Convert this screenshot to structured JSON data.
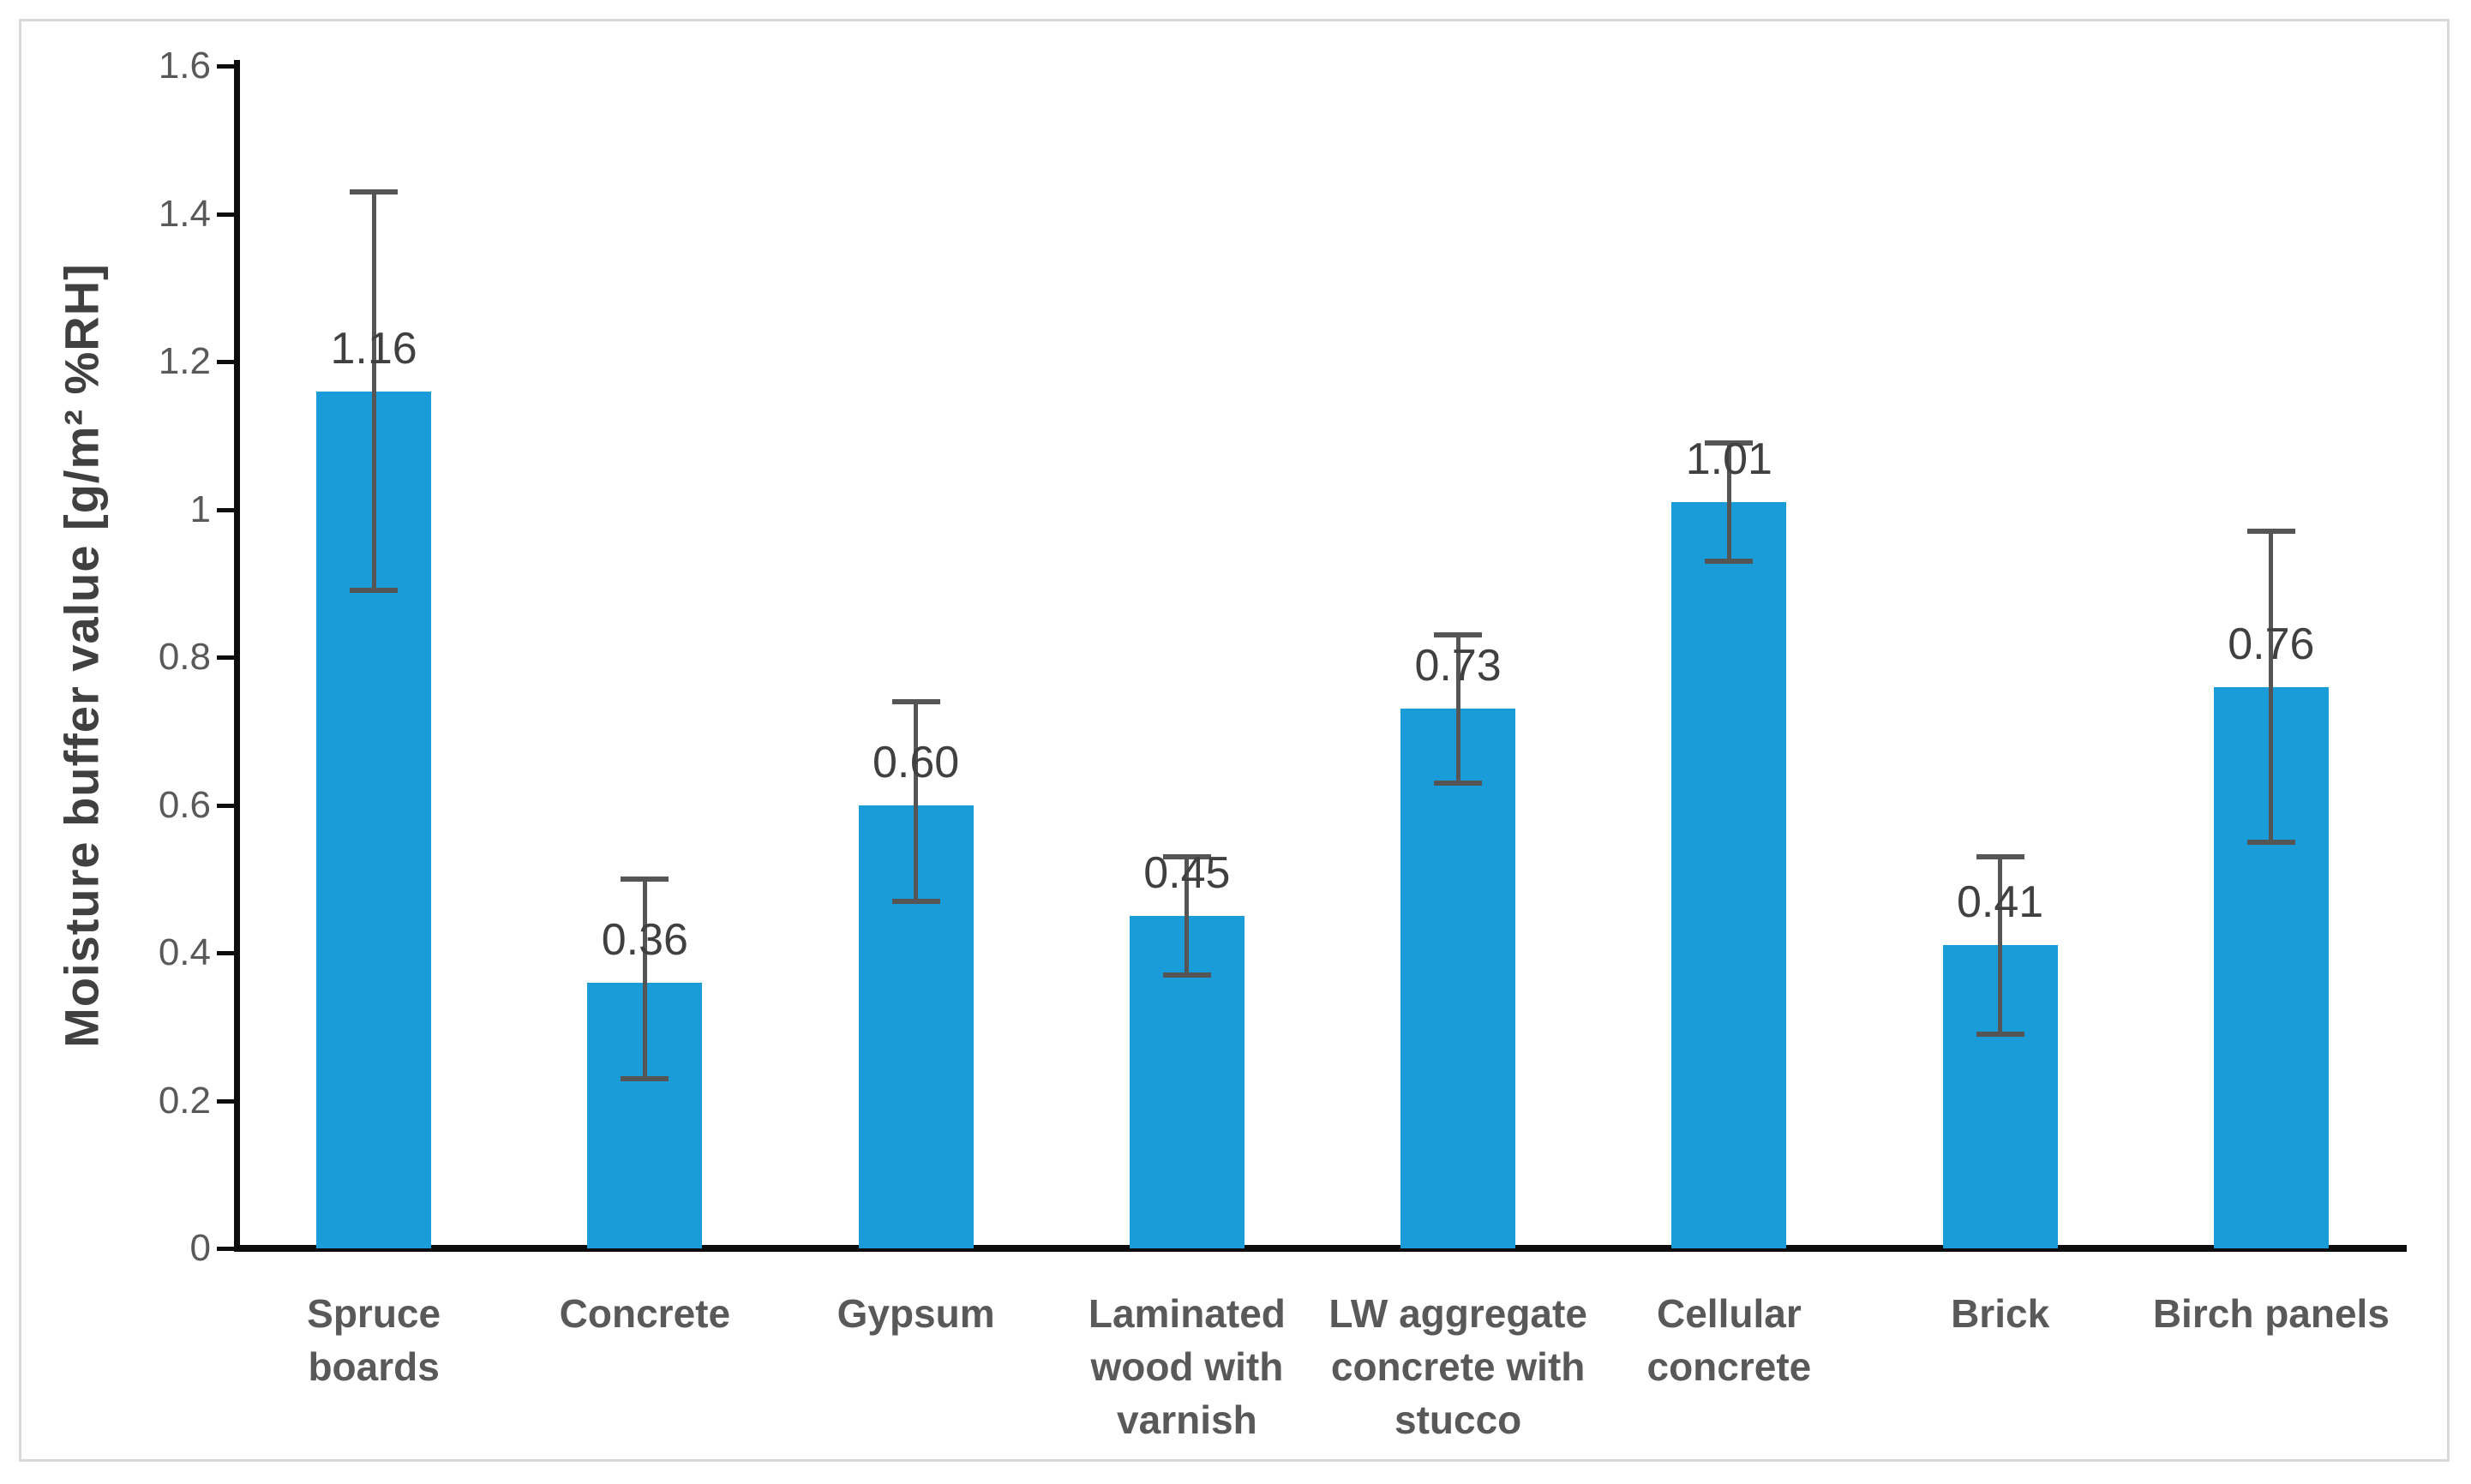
{
  "figure": {
    "background_color": "#ffffff",
    "border_color": "#d9d9d9",
    "axis_color": "#0d0d0d"
  },
  "chart_data": {
    "type": "bar",
    "title": "",
    "xlabel": "",
    "ylabel": "Moisture buffer value [g/m² %RH]",
    "ylim": [
      0,
      1.6
    ],
    "ytick_step": 0.2,
    "ytick_labels": [
      "0",
      "0.2",
      "0.4",
      "0.6",
      "0.8",
      "1",
      "1.2",
      "1.4",
      "1.6"
    ],
    "grid": false,
    "legend": false,
    "bar_color": "#1a9cd8",
    "error_bar_color": "#555555",
    "value_label_color": "#404040",
    "category_label_color": "#595959",
    "categories": [
      "Spruce boards",
      "Concrete",
      "Gypsum",
      "Laminated\nwood with\nvarnish",
      "LW aggregate\nconcrete with\nstucco",
      "Cellular\nconcrete",
      "Brick",
      "Birch panels"
    ],
    "values": [
      1.16,
      0.36,
      0.6,
      0.45,
      0.73,
      1.01,
      0.41,
      0.76
    ],
    "value_labels": [
      "1.16",
      "0.36",
      "0.60",
      "0.45",
      "0.73",
      "1.01",
      "0.41",
      "0.76"
    ],
    "error_low": [
      0.89,
      0.23,
      0.47,
      0.37,
      0.63,
      0.93,
      0.29,
      0.55
    ],
    "error_high": [
      1.43,
      0.5,
      0.74,
      0.53,
      0.83,
      1.09,
      0.53,
      0.97
    ]
  }
}
